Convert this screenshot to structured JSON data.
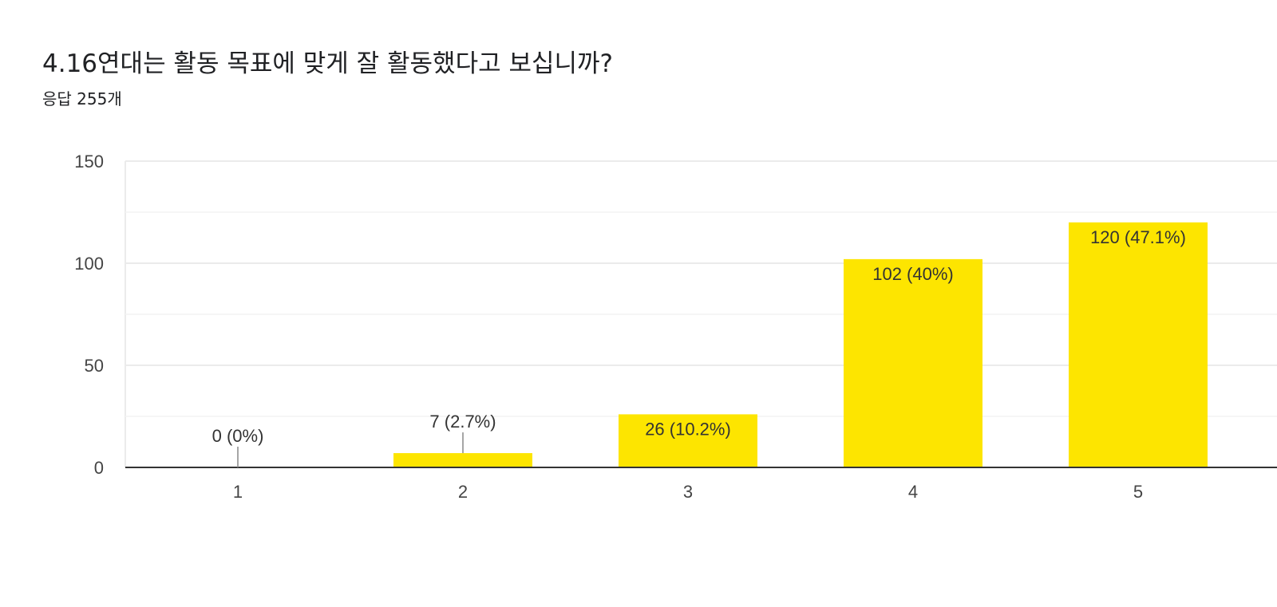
{
  "header": {
    "title": "4.16연대는 활동 목표에 맞게 잘 활동했다고 보십니까?",
    "subtitle": "응답 255개"
  },
  "colors": {
    "bar": "#fde500",
    "grid": "#ebebeb",
    "axis": "#333333"
  },
  "chart_data": {
    "type": "bar",
    "title": "4.16연대는 활동 목표에 맞게 잘 활동했다고 보십니까?",
    "subtitle": "응답 255개",
    "xlabel": "",
    "ylabel": "",
    "categories": [
      "1",
      "2",
      "3",
      "4",
      "5"
    ],
    "values": [
      0,
      7,
      26,
      102,
      120
    ],
    "data_labels": [
      "0 (0%)",
      "7 (2.7%)",
      "26 (10.2%)",
      "102 (40%)",
      "120 (47.1%)"
    ],
    "ylim": [
      0,
      150
    ],
    "yticks": [
      "0",
      "50",
      "100",
      "150"
    ],
    "grid": true,
    "legend": "none"
  }
}
